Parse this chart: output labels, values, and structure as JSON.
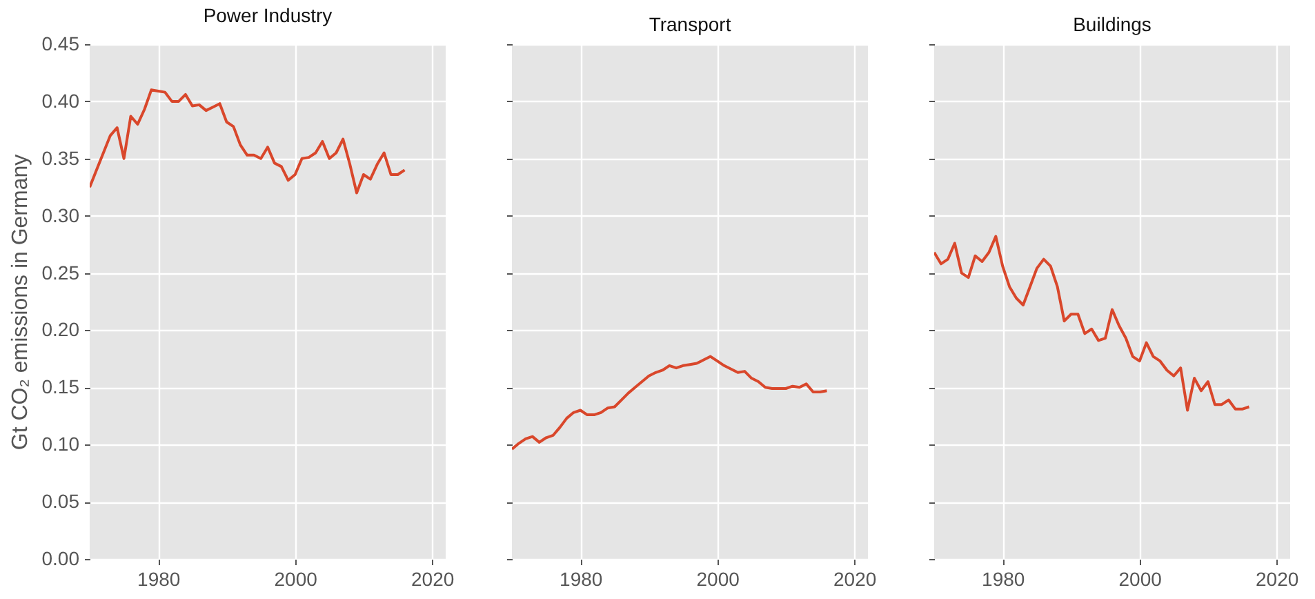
{
  "chart_data": [
    {
      "type": "line",
      "title": "Power Industry",
      "ylabel": "Gt CO₂ emissions in Germany",
      "xlim": [
        1970,
        2022
      ],
      "xticks": [
        1980,
        2000,
        2020
      ],
      "ylim": [
        0,
        0.45
      ],
      "yticks": [
        {
          "value": 0,
          "label": "0.00"
        },
        0.05,
        {
          "value": 0.1,
          "label": "0.10"
        },
        0.15,
        {
          "value": 0.2,
          "label": "0.20"
        },
        0.25,
        {
          "value": 0.3,
          "label": "0.30"
        },
        0.35,
        {
          "value": 0.4,
          "label": "0.40"
        },
        0.45
      ],
      "grid": true,
      "x": [
        1970,
        1971,
        1972,
        1973,
        1974,
        1975,
        1976,
        1977,
        1978,
        1979,
        1980,
        1981,
        1982,
        1983,
        1984,
        1985,
        1986,
        1987,
        1988,
        1989,
        1990,
        1991,
        1992,
        1993,
        1994,
        1995,
        1996,
        1997,
        1998,
        1999,
        2000,
        2001,
        2002,
        2003,
        2004,
        2005,
        2006,
        2007,
        2008,
        2009,
        2010,
        2011,
        2012,
        2013,
        2014,
        2015,
        2016
      ],
      "series": [
        {
          "color": "#d9472b",
          "values": [
            0.325,
            0.34,
            0.355,
            0.37,
            0.377,
            0.35,
            0.387,
            0.38,
            0.393,
            0.41,
            0.409,
            0.408,
            0.4,
            0.4,
            0.406,
            0.396,
            0.397,
            0.392,
            0.395,
            0.398,
            0.382,
            0.378,
            0.362,
            0.353,
            0.353,
            0.35,
            0.36,
            0.346,
            0.343,
            0.331,
            0.336,
            0.35,
            0.351,
            0.355,
            0.365,
            0.35,
            0.355,
            0.367,
            0.345,
            0.32,
            0.336,
            0.332,
            0.345,
            0.355,
            0.336,
            0.336,
            0.34
          ]
        }
      ]
    },
    {
      "type": "line",
      "title": "Transport",
      "xlim": [
        1970,
        2022
      ],
      "xticks": [
        1980,
        2000,
        2020
      ],
      "ylim": [
        0,
        0.45
      ],
      "yticks": [
        0.0,
        0.05,
        0.1,
        0.15,
        0.2,
        0.25,
        0.3,
        0.35,
        0.4,
        0.45
      ],
      "grid": true,
      "tick_labels": "x",
      "x": [
        1970,
        1971,
        1972,
        1973,
        1974,
        1975,
        1976,
        1977,
        1978,
        1979,
        1980,
        1981,
        1982,
        1983,
        1984,
        1985,
        1986,
        1987,
        1988,
        1989,
        1990,
        1991,
        1992,
        1993,
        1994,
        1995,
        1996,
        1997,
        1998,
        1999,
        2000,
        2001,
        2002,
        2003,
        2004,
        2005,
        2006,
        2007,
        2008,
        2009,
        2010,
        2011,
        2012,
        2013,
        2014,
        2015,
        2016
      ],
      "series": [
        {
          "color": "#d9472b",
          "values": [
            0.096,
            0.101,
            0.105,
            0.107,
            0.102,
            0.106,
            0.108,
            0.115,
            0.123,
            0.128,
            0.13,
            0.126,
            0.126,
            0.128,
            0.132,
            0.133,
            0.139,
            0.145,
            0.15,
            0.155,
            0.16,
            0.163,
            0.165,
            0.169,
            0.167,
            0.169,
            0.17,
            0.171,
            0.174,
            0.177,
            0.173,
            0.169,
            0.166,
            0.163,
            0.164,
            0.158,
            0.155,
            0.15,
            0.149,
            0.149,
            0.149,
            0.151,
            0.15,
            0.153,
            0.146,
            0.146,
            0.147
          ]
        }
      ]
    },
    {
      "type": "line",
      "title": "Buildings",
      "xlim": [
        1970,
        2022
      ],
      "xticks": [
        1980,
        2000,
        2020
      ],
      "ylim": [
        0,
        0.45
      ],
      "yticks": [
        0.0,
        0.05,
        0.1,
        0.15,
        0.2,
        0.25,
        0.3,
        0.35,
        0.4,
        0.45
      ],
      "grid": true,
      "tick_labels": "x",
      "x": [
        1970,
        1971,
        1972,
        1973,
        1974,
        1975,
        1976,
        1977,
        1978,
        1979,
        1980,
        1981,
        1982,
        1983,
        1984,
        1985,
        1986,
        1987,
        1988,
        1989,
        1990,
        1991,
        1992,
        1993,
        1994,
        1995,
        1996,
        1997,
        1998,
        1999,
        2000,
        2001,
        2002,
        2003,
        2004,
        2005,
        2006,
        2007,
        2008,
        2009,
        2010,
        2011,
        2012,
        2013,
        2014,
        2015,
        2016
      ],
      "series": [
        {
          "color": "#d9472b",
          "values": [
            0.268,
            0.258,
            0.262,
            0.276,
            0.25,
            0.246,
            0.265,
            0.26,
            0.268,
            0.282,
            0.256,
            0.238,
            0.228,
            0.222,
            0.238,
            0.254,
            0.262,
            0.256,
            0.238,
            0.208,
            0.214,
            0.214,
            0.197,
            0.201,
            0.191,
            0.193,
            0.218,
            0.204,
            0.193,
            0.177,
            0.173,
            0.189,
            0.177,
            0.173,
            0.165,
            0.16,
            0.167,
            0.13,
            0.158,
            0.147,
            0.155,
            0.135,
            0.135,
            0.139,
            0.131,
            0.131,
            0.133
          ]
        }
      ]
    }
  ]
}
